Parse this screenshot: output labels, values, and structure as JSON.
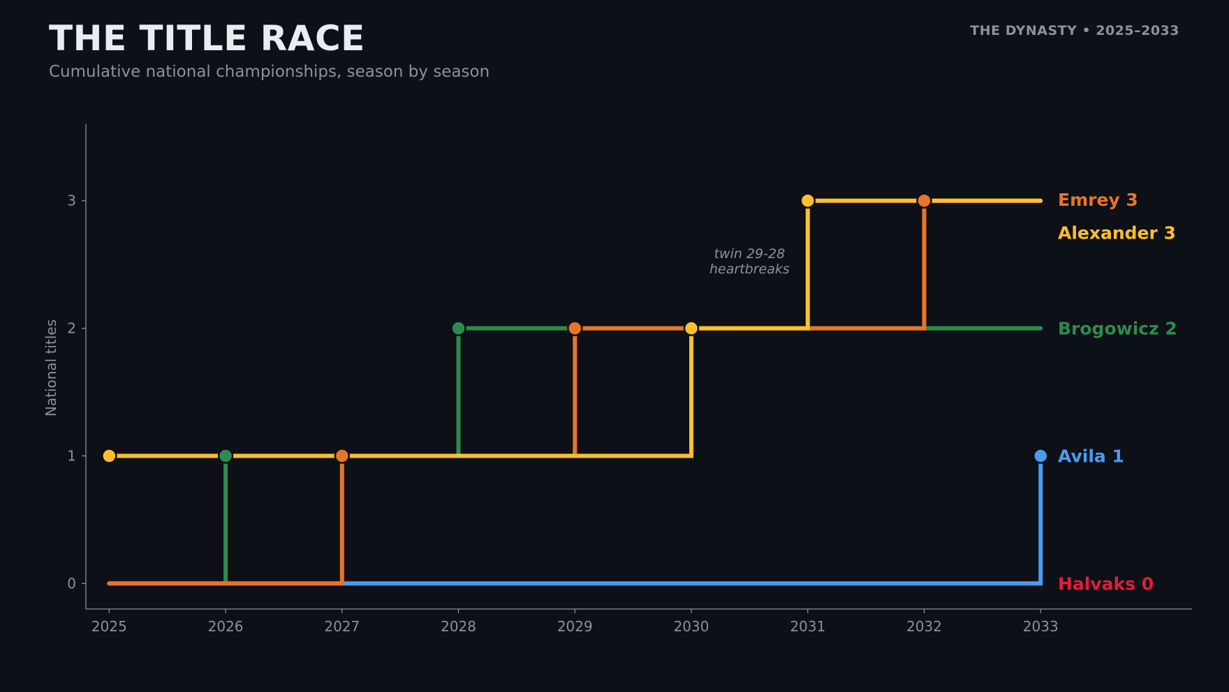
{
  "header": {
    "title": "THE TITLE RACE",
    "subtitle": "Cumulative national championships, season by season",
    "tag": "THE DYNASTY  •  2025–2033"
  },
  "chart_data": {
    "type": "line",
    "step": true,
    "ylabel": "National titles",
    "x": [
      2025,
      2026,
      2027,
      2028,
      2029,
      2030,
      2031,
      2032,
      2033
    ],
    "yticks": [
      0,
      1,
      2,
      3
    ],
    "xlim": [
      2024.8,
      2034.3
    ],
    "ylim": [
      -0.2,
      3.6
    ],
    "grid": false,
    "series": [
      {
        "name": "Halvaks",
        "color": "#e31c3d",
        "values": [
          0,
          0,
          0,
          0,
          0,
          0,
          0,
          0,
          0
        ],
        "title_years": [],
        "label_y": 0
      },
      {
        "name": "Avila",
        "color": "#4a9cf0",
        "values": [
          0,
          0,
          0,
          0,
          0,
          0,
          0,
          0,
          1
        ],
        "title_years": [
          2033
        ],
        "label_y": 1
      },
      {
        "name": "Brogowicz",
        "color": "#2e8b4e",
        "values": [
          0,
          1,
          1,
          2,
          2,
          2,
          2,
          2,
          2
        ],
        "title_years": [
          2026,
          2028
        ],
        "label_y": 2
      },
      {
        "name": "Emrey",
        "color": "#ea7425",
        "values": [
          0,
          0,
          1,
          1,
          2,
          2,
          2,
          3,
          3
        ],
        "title_years": [
          2027,
          2029,
          2032
        ],
        "label_y": 3.01
      },
      {
        "name": "Alexander",
        "color": "#fec02b",
        "values": [
          1,
          1,
          1,
          1,
          1,
          2,
          3,
          3,
          3
        ],
        "title_years": [
          2025,
          2030,
          2031
        ],
        "label_y": 2.75
      }
    ],
    "annotations": [
      {
        "lines": [
          "twin 29-28",
          "heartbreaks"
        ],
        "x": 2030.5,
        "y": 2.55
      }
    ]
  }
}
